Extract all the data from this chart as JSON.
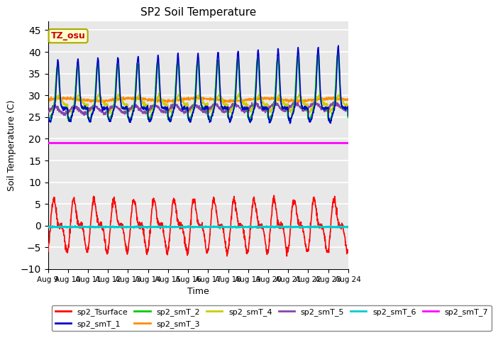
{
  "title": "SP2 Soil Temperature",
  "ylabel": "Soil Temperature (C)",
  "xlabel": "Time",
  "ylim": [
    -10,
    47
  ],
  "yticks": [
    -10,
    -5,
    0,
    5,
    10,
    15,
    20,
    25,
    30,
    35,
    40,
    45
  ],
  "xtick_labels": [
    "Aug 9",
    "Aug 10",
    "Aug 11",
    "Aug 12",
    "Aug 13",
    "Aug 14",
    "Aug 15",
    "Aug 16",
    "Aug 17",
    "Aug 18",
    "Aug 19",
    "Aug 20",
    "Aug 21",
    "Aug 22",
    "Aug 23",
    "Aug 24"
  ],
  "background_color": "#e8e8e8",
  "grid_color": "#ffffff",
  "legend_entries": [
    "sp2_Tsurface",
    "sp2_smT_1",
    "sp2_smT_2",
    "sp2_smT_3",
    "sp2_smT_4",
    "sp2_smT_5",
    "sp2_smT_6",
    "sp2_smT_7"
  ],
  "line_colors": [
    "#ff0000",
    "#0000cd",
    "#00cc00",
    "#ff8c00",
    "#cccc00",
    "#8844aa",
    "#00cccc",
    "#ff00ff"
  ],
  "annotation_text": "TZ_osu",
  "annotation_color": "#cc0000",
  "annotation_bg": "#ffffcc",
  "annotation_border": "#aaaa00",
  "sp2_smT_7_value": 19.0,
  "sp2_smT_6_value": -0.3,
  "n_days": 15,
  "n_per_day": 96
}
